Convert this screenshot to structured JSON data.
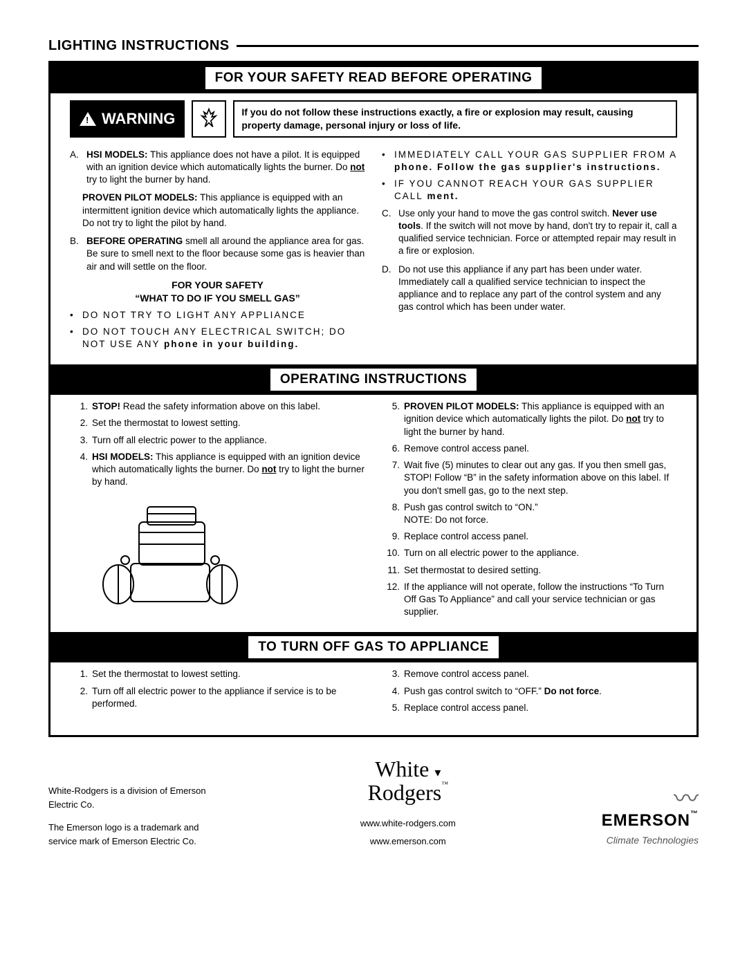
{
  "page_title": "LIGHTING INSTRUCTIONS",
  "band1": "FOR YOUR SAFETY READ BEFORE OPERATING",
  "warning": {
    "label": "WARNING",
    "flame_glyph": "🔥",
    "text": "If you do not follow these instructions exactly, a fire or explosion may result, causing property damage, personal injury or loss of life."
  },
  "safety": {
    "A_mk": "A.",
    "A_html": "<b>HSI MODELS:</b> This appliance does not have a pilot. It is equipped with an ignition device which automatically lights the burner. Do <u><b>not</b></u> try to light the burner by hand.",
    "A2_html": "<b>PROVEN PILOT MODELS:</b> This appliance is equipped with an intermittent ignition device which automatically lights the appliance. Do not try to light the pilot by hand.",
    "B_mk": "B.",
    "B_html": "<b>BEFORE OPERATING</b> smell all around the appliance area for gas. Be sure to smell next to the floor because some gas is heavier than air and will settle on the floor.",
    "head1": "FOR YOUR SAFETY",
    "head2": "“WHAT TO DO IF YOU SMELL GAS”",
    "b1": "DO NOT TRY TO LIGHT ANY APPLIANCE",
    "b2_html": "DO NOT TOUCH ANY ELECTRICAL SWITCH; DO NOT USE ANY <b>phone in your building.</b>",
    "r1_html": "IMMEDIATELY CALL YOUR GAS SUPPLIER FROM A <b>phone. Follow the gas supplier's instructions.</b>",
    "r2_html": "IF YOU CANNOT REACH YOUR GAS SUPPLIER CALL<b> ment.</b>",
    "C_mk": "C.",
    "C_html": "Use only your hand to move the gas control switch. <b>Never use tools</b>. If the switch will not move by hand, don't try to repair it, call a qualified service technician. Force or attempted repair may result in a fire or explosion.",
    "D_mk": "D.",
    "D_html": "Do not use this appliance if any part has been under water. Immediately call a qualified service technician to inspect the appliance and to replace any part of the control system and any gas control which has been under water."
  },
  "band2": "OPERATING INSTRUCTIONS",
  "op_left": [
    {
      "n": "1.",
      "h": "<b>STOP!</b> Read the safety information above on this label."
    },
    {
      "n": "2.",
      "h": "Set the thermostat to lowest setting."
    },
    {
      "n": "3.",
      "h": "Turn off all electric power to the appliance."
    },
    {
      "n": "4.",
      "h": "<b>HSI MODELS:</b> This appliance is equipped with an ignition device which automatically lights the burner. Do <u><b>not</b></u> try to light the burner by hand."
    }
  ],
  "op_right": [
    {
      "n": "5.",
      "h": "<b>PROVEN PILOT MODELS:</b> This appliance is equipped with an ignition device which automatically lights the pilot. Do <u><b>not</b></u> try to light the burner by hand."
    },
    {
      "n": "6.",
      "h": "Remove control access panel."
    },
    {
      "n": "7.",
      "h": "Wait five (5) minutes to clear out any gas. If you then smell gas, STOP! Follow “B” in the safety information above on this label. If you don't smell gas, go to the next step."
    },
    {
      "n": "8.",
      "h": "Push gas control switch to “ON.”<br>NOTE: Do not force."
    },
    {
      "n": "9.",
      "h": "Replace control access panel."
    },
    {
      "n": "10.",
      "h": "Turn on all electric power to the appliance."
    },
    {
      "n": "11.",
      "h": "Set thermostat to desired setting."
    },
    {
      "n": "12.",
      "h": "If the appliance will not operate, follow the instructions “To Turn Off Gas To Appliance” and call your service technician or gas supplier."
    }
  ],
  "band3": "TO TURN OFF GAS TO APPLIANCE",
  "off_left": [
    {
      "n": "1.",
      "h": "Set the thermostat to lowest setting."
    },
    {
      "n": "2.",
      "h": "Turn off all electric power to the appliance if service is to be performed."
    }
  ],
  "off_right": [
    {
      "n": "3.",
      "h": "Remove control access panel."
    },
    {
      "n": "4.",
      "h": "Push gas control switch to “OFF.” <b>Do not force</b>."
    },
    {
      "n": "5.",
      "h": "Replace control access panel."
    }
  ],
  "footer": {
    "left1": "White-Rodgers is a division of Emerson Electric Co.",
    "left2": "The Emerson logo is a trademark and service mark of Emerson Electric Co.",
    "logo1": "White ",
    "logo2": "Rodgers",
    "url1": "www.white-rodgers.com",
    "url2": "www.emerson.com",
    "em_name": "EMERSON",
    "em_tag": "Climate Technologies"
  },
  "bullet_glyph": "•",
  "colors": {
    "bg": "#ffffff",
    "fg": "#000000"
  }
}
